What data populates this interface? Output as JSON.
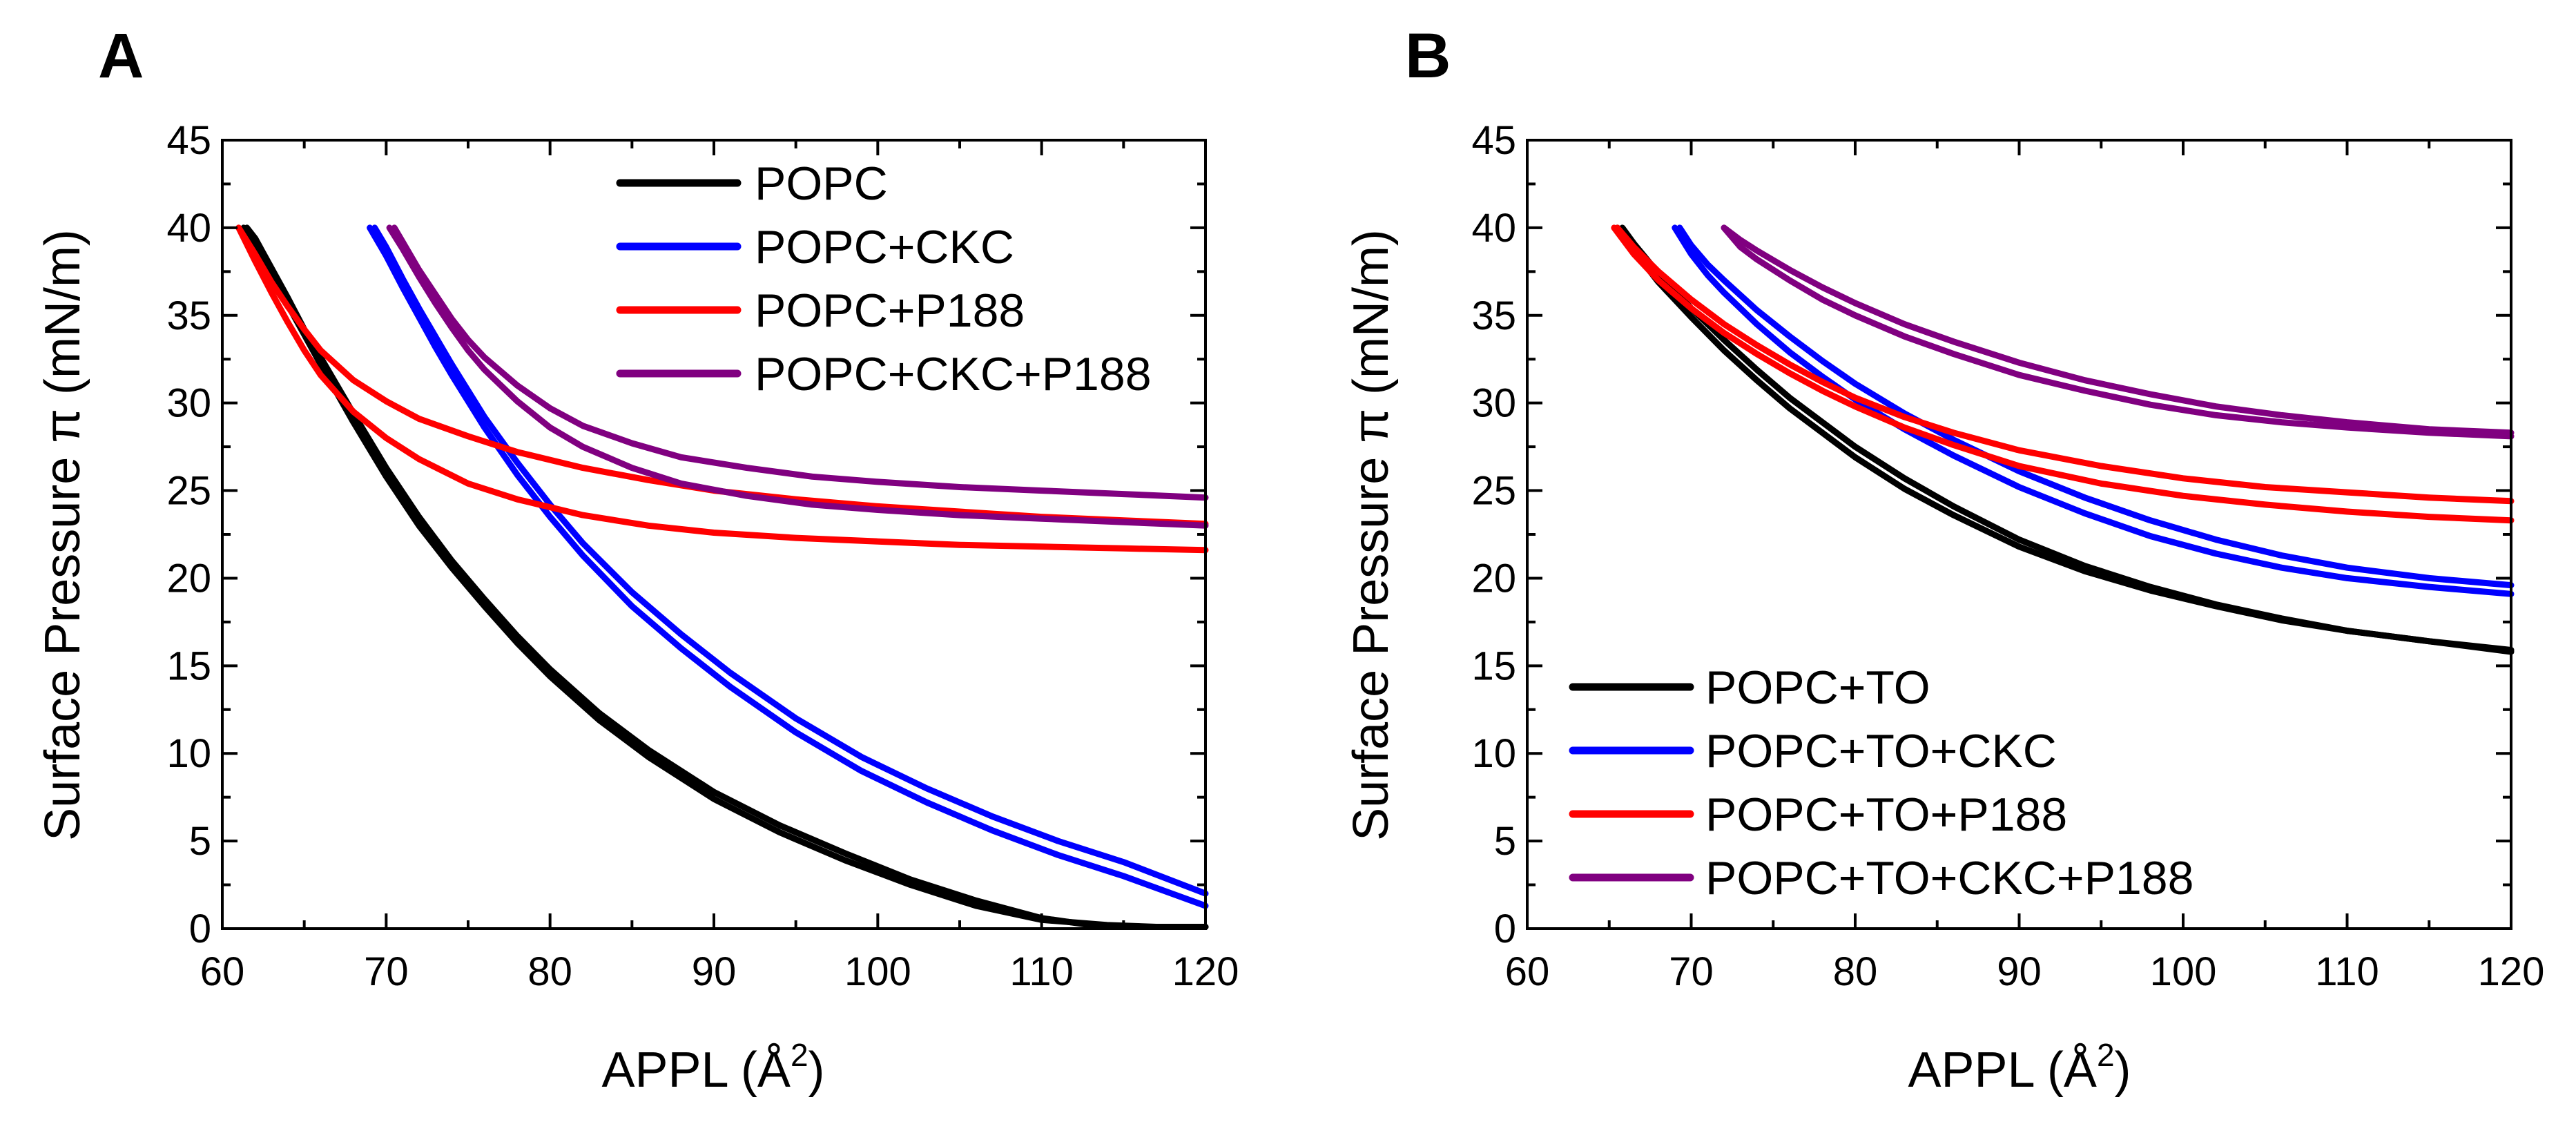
{
  "chart_data": [
    {
      "type": "line",
      "panel_label": "A",
      "title": "",
      "xlabel_main": "APPL (Å",
      "xlabel_sup": "2",
      "xlabel_close": ")",
      "ylabel": "Surface Pressure π (mN/m)",
      "xlim": [
        60,
        120
      ],
      "ylim": [
        0,
        45
      ],
      "xticks": [
        60,
        70,
        80,
        90,
        100,
        110,
        120
      ],
      "yticks": [
        0,
        5,
        10,
        15,
        20,
        25,
        30,
        35,
        40,
        45
      ],
      "legend_position": "top-right",
      "legend": [
        "POPC",
        "POPC+CKC",
        "POPC+P188",
        "POPC+CKC+P188"
      ],
      "series": [
        {
          "name": "POPC",
          "color": "#000000",
          "x": [
            61.5,
            62.0,
            63.0,
            64.0,
            65.0,
            66.0,
            68.0,
            70.0,
            72.0,
            74.0,
            76.0,
            78.0,
            80.0,
            83.0,
            86.0,
            90.0,
            94.0,
            98.0,
            102.0,
            106.0,
            110.0,
            113.0,
            116.0,
            120.0
          ],
          "y": [
            40.0,
            39.4,
            37.7,
            36.0,
            34.2,
            32.6,
            29.4,
            26.3,
            23.5,
            21.0,
            18.8,
            16.7,
            14.8,
            12.3,
            10.2,
            7.8,
            5.9,
            4.3,
            2.8,
            1.6,
            0.6,
            0.2,
            0.1,
            0.1
          ]
        },
        {
          "name": "POPC",
          "color": "#000000",
          "x": [
            61.3,
            62.0,
            63.0,
            64.0,
            65.0,
            66.0,
            68.0,
            70.0,
            72.0,
            74.0,
            76.0,
            78.0,
            80.0,
            83.0,
            86.0,
            90.0,
            94.0,
            98.0,
            102.0,
            106.0,
            110.0,
            114.0,
            117.0,
            120.0
          ],
          "y": [
            40.0,
            39.0,
            37.3,
            35.6,
            33.9,
            32.2,
            28.9,
            25.8,
            23.0,
            20.6,
            18.4,
            16.3,
            14.4,
            11.9,
            9.8,
            7.4,
            5.5,
            3.9,
            2.5,
            1.3,
            0.5,
            0.2,
            0.1,
            0.1
          ]
        },
        {
          "name": "POPC+CKC",
          "color": "#0000ff",
          "x": [
            69.3,
            70.0,
            71.0,
            72.0,
            73.0,
            74.0,
            76.0,
            78.0,
            80.0,
            82.0,
            85.0,
            88.0,
            91.0,
            95.0,
            99.0,
            103.0,
            107.0,
            111.0,
            115.0,
            120.0
          ],
          "y": [
            40.0,
            38.9,
            37.1,
            35.4,
            33.8,
            32.2,
            29.2,
            26.6,
            24.2,
            22.0,
            19.2,
            16.8,
            14.6,
            12.0,
            9.8,
            8.0,
            6.4,
            5.0,
            3.8,
            2.0
          ]
        },
        {
          "name": "POPC+CKC",
          "color": "#0000ff",
          "x": [
            69.0,
            70.0,
            71.0,
            72.0,
            73.0,
            74.0,
            76.0,
            78.0,
            80.0,
            82.0,
            85.0,
            88.0,
            91.0,
            95.0,
            99.0,
            103.0,
            107.0,
            111.0,
            115.0,
            120.0
          ],
          "y": [
            40.0,
            38.4,
            36.6,
            34.9,
            33.2,
            31.6,
            28.6,
            25.9,
            23.5,
            21.3,
            18.4,
            16.0,
            13.8,
            11.2,
            9.0,
            7.2,
            5.6,
            4.2,
            3.0,
            1.3
          ]
        },
        {
          "name": "POPC+P188",
          "color": "#ff0000",
          "x": [
            61.0,
            62.0,
            63.0,
            64.0,
            65.0,
            66.0,
            68.0,
            70.0,
            72.0,
            75.0,
            78.0,
            82.0,
            86.0,
            90.0,
            95.0,
            100.0,
            105.0,
            110.0,
            115.0,
            120.0
          ],
          "y": [
            40.0,
            38.5,
            36.9,
            35.5,
            34.2,
            33.0,
            31.3,
            30.1,
            29.1,
            28.1,
            27.2,
            26.3,
            25.6,
            25.0,
            24.5,
            24.1,
            23.8,
            23.5,
            23.3,
            23.1
          ]
        },
        {
          "name": "POPC+P188",
          "color": "#ff0000",
          "x": [
            61.0,
            62.0,
            63.0,
            64.0,
            65.0,
            66.0,
            68.0,
            70.0,
            72.0,
            75.0,
            78.0,
            82.0,
            86.0,
            90.0,
            95.0,
            100.0,
            105.0,
            110.0,
            115.0,
            120.0
          ],
          "y": [
            40.0,
            38.1,
            36.3,
            34.6,
            33.0,
            31.6,
            29.5,
            28.0,
            26.8,
            25.4,
            24.5,
            23.6,
            23.0,
            22.6,
            22.3,
            22.1,
            21.9,
            21.8,
            21.7,
            21.6
          ]
        },
        {
          "name": "POPC+CKC+P188",
          "color": "#800080",
          "x": [
            70.5,
            71.0,
            72.0,
            73.0,
            74.0,
            75.0,
            76.0,
            78.0,
            80.0,
            82.0,
            85.0,
            88.0,
            92.0,
            96.0,
            100.0,
            105.0,
            110.0,
            115.0,
            120.0
          ],
          "y": [
            40.0,
            39.2,
            37.6,
            36.2,
            34.8,
            33.6,
            32.6,
            31.0,
            29.7,
            28.7,
            27.7,
            26.9,
            26.3,
            25.8,
            25.5,
            25.2,
            25.0,
            24.8,
            24.6
          ]
        },
        {
          "name": "POPC+CKC+P188",
          "color": "#800080",
          "x": [
            70.2,
            71.0,
            72.0,
            73.0,
            74.0,
            75.0,
            76.0,
            78.0,
            80.0,
            82.0,
            85.0,
            88.0,
            92.0,
            96.0,
            100.0,
            105.0,
            110.0,
            115.0,
            120.0
          ],
          "y": [
            40.0,
            38.8,
            37.2,
            35.7,
            34.3,
            33.0,
            31.9,
            30.1,
            28.6,
            27.5,
            26.3,
            25.4,
            24.7,
            24.2,
            23.9,
            23.6,
            23.4,
            23.2,
            23.0
          ]
        }
      ]
    },
    {
      "type": "line",
      "panel_label": "B",
      "title": "",
      "xlabel_main": "APPL (Å",
      "xlabel_sup": "2",
      "xlabel_close": ")",
      "ylabel": "Surface Pressure π (mN/m)",
      "xlim": [
        60,
        120
      ],
      "ylim": [
        0,
        45
      ],
      "xticks": [
        60,
        70,
        80,
        90,
        100,
        110,
        120
      ],
      "yticks": [
        0,
        5,
        10,
        15,
        20,
        25,
        30,
        35,
        40,
        45
      ],
      "legend_position": "bottom-left",
      "legend": [
        "POPC+TO",
        "POPC+TO+CKC",
        "POPC+TO+P188",
        "POPC+TO+CKC+P188"
      ],
      "series": [
        {
          "name": "POPC+TO",
          "color": "#000000",
          "x": [
            65.8,
            66.5,
            68.0,
            70.0,
            72.0,
            74.0,
            76.0,
            78.0,
            80.0,
            83.0,
            86.0,
            90.0,
            94.0,
            98.0,
            102.0,
            106.0,
            110.0,
            115.0,
            120.0
          ],
          "y": [
            40.0,
            39.1,
            37.4,
            35.4,
            33.6,
            31.9,
            30.3,
            28.9,
            27.5,
            25.7,
            24.1,
            22.2,
            20.7,
            19.5,
            18.5,
            17.7,
            17.0,
            16.4,
            15.8
          ]
        },
        {
          "name": "POPC+TO",
          "color": "#000000",
          "x": [
            65.5,
            66.5,
            68.0,
            70.0,
            72.0,
            74.0,
            76.0,
            78.0,
            80.0,
            83.0,
            86.0,
            90.0,
            94.0,
            98.0,
            102.0,
            106.0,
            110.0,
            115.0,
            120.0
          ],
          "y": [
            40.0,
            38.7,
            36.9,
            34.9,
            33.0,
            31.3,
            29.7,
            28.3,
            26.9,
            25.1,
            23.6,
            21.8,
            20.4,
            19.3,
            18.4,
            17.6,
            17.0,
            16.4,
            15.9
          ]
        },
        {
          "name": "POPC+TO+CKC",
          "color": "#0000ff",
          "x": [
            69.3,
            70.0,
            71.0,
            72.0,
            74.0,
            76.0,
            78.0,
            80.0,
            83.0,
            86.0,
            90.0,
            94.0,
            98.0,
            102.0,
            106.0,
            110.0,
            115.0,
            120.0
          ],
          "y": [
            40.0,
            39.0,
            37.9,
            37.0,
            35.3,
            33.8,
            32.4,
            31.1,
            29.4,
            27.9,
            26.1,
            24.6,
            23.3,
            22.2,
            21.3,
            20.6,
            20.0,
            19.6
          ]
        },
        {
          "name": "POPC+TO+CKC",
          "color": "#0000ff",
          "x": [
            69.0,
            70.0,
            71.0,
            72.0,
            74.0,
            76.0,
            78.0,
            80.0,
            83.0,
            86.0,
            90.0,
            94.0,
            98.0,
            102.0,
            106.0,
            110.0,
            115.0,
            120.0
          ],
          "y": [
            40.0,
            38.5,
            37.3,
            36.3,
            34.5,
            32.9,
            31.5,
            30.2,
            28.5,
            27.0,
            25.2,
            23.7,
            22.4,
            21.4,
            20.6,
            20.0,
            19.5,
            19.1
          ]
        },
        {
          "name": "POPC+TO+P188",
          "color": "#ff0000",
          "x": [
            65.5,
            66.5,
            68.0,
            70.0,
            72.0,
            74.0,
            76.0,
            78.0,
            80.0,
            83.0,
            86.0,
            90.0,
            95.0,
            100.0,
            105.0,
            110.0,
            115.0,
            120.0
          ],
          "y": [
            40.0,
            38.9,
            37.5,
            35.9,
            34.5,
            33.3,
            32.2,
            31.2,
            30.3,
            29.2,
            28.3,
            27.3,
            26.4,
            25.7,
            25.2,
            24.9,
            24.6,
            24.4
          ]
        },
        {
          "name": "POPC+TO+P188",
          "color": "#ff0000",
          "x": [
            65.3,
            66.5,
            68.0,
            70.0,
            72.0,
            74.0,
            76.0,
            78.0,
            80.0,
            83.0,
            86.0,
            90.0,
            95.0,
            100.0,
            105.0,
            110.0,
            115.0,
            120.0
          ],
          "y": [
            40.0,
            38.5,
            37.0,
            35.4,
            34.0,
            32.8,
            31.7,
            30.7,
            29.8,
            28.6,
            27.6,
            26.4,
            25.4,
            24.7,
            24.2,
            23.8,
            23.5,
            23.3
          ]
        },
        {
          "name": "POPC+TO+CKC+P188",
          "color": "#800080",
          "x": [
            72.0,
            73.0,
            74.0,
            76.0,
            78.0,
            80.0,
            83.0,
            86.0,
            90.0,
            94.0,
            98.0,
            102.0,
            106.0,
            110.0,
            115.0,
            120.0
          ],
          "y": [
            40.0,
            39.3,
            38.7,
            37.6,
            36.6,
            35.7,
            34.5,
            33.5,
            32.3,
            31.3,
            30.5,
            29.8,
            29.3,
            28.9,
            28.5,
            28.3
          ]
        },
        {
          "name": "POPC+TO+CKC+P188",
          "color": "#800080",
          "x": [
            72.0,
            73.0,
            74.0,
            76.0,
            78.0,
            80.0,
            83.0,
            86.0,
            90.0,
            94.0,
            98.0,
            102.0,
            106.0,
            110.0,
            115.0,
            120.0
          ],
          "y": [
            40.0,
            38.9,
            38.2,
            37.0,
            35.9,
            35.0,
            33.8,
            32.8,
            31.6,
            30.7,
            29.9,
            29.3,
            28.9,
            28.6,
            28.3,
            28.1
          ]
        }
      ]
    }
  ]
}
